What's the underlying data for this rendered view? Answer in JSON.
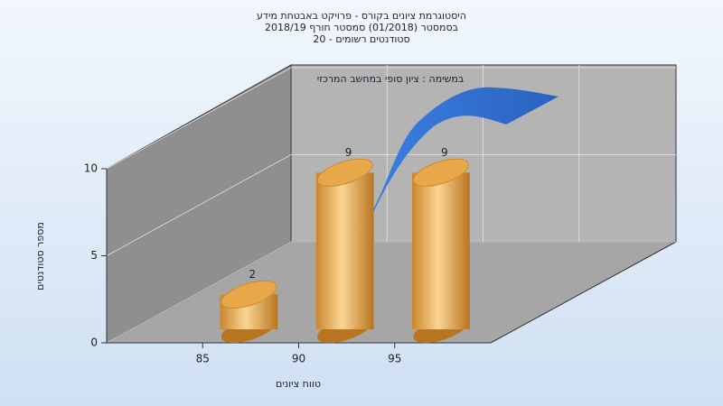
{
  "chart_data": {
    "type": "histogram",
    "title": [
      "היסטוגרמת ציונים בקורס - פרויקט באבטחת מידע",
      "בסמסטר  (01/2018)  סמסטר חורף 2018/19",
      "סטודנטים רשומים - 20"
    ],
    "legend_text": "במשימה : ציון סופי במחשב המרכזי",
    "x_label": "טווח ציונים",
    "y_label": "מספר סטודנטים",
    "bins": [
      85,
      90,
      95,
      100
    ],
    "counts": [
      2,
      9,
      9
    ],
    "color": "#e8a84a",
    "xlim": [
      80,
      100
    ],
    "xticks": [
      85,
      90,
      95
    ],
    "ylim": [
      0,
      10
    ],
    "yticks": [
      0,
      5,
      10
    ],
    "grid": true
  }
}
